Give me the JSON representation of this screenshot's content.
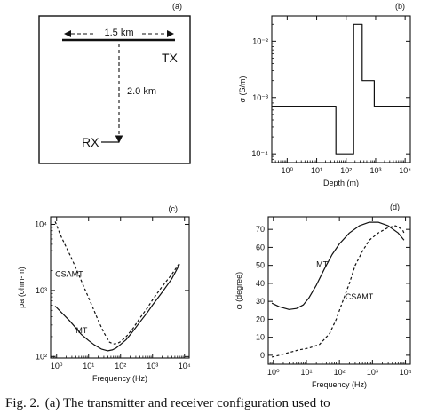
{
  "panel_a": {
    "tag": "(a)",
    "length_label": "1.5 km",
    "tx_label": "TX",
    "distance_label": "2.0 km",
    "rx_label": "RX"
  },
  "caption": {
    "fig_label": "Fig. 2.",
    "text": "(a) The transmitter and receiver configuration used to"
  },
  "chart_data": [
    {
      "id": "b",
      "tag": "(b)",
      "type": "line",
      "xscale": "log",
      "yscale": "log",
      "xlim": [
        0.3,
        15000
      ],
      "ylim": [
        7e-05,
        0.028
      ],
      "xlabel": "Depth (m)",
      "ylabel": "σ (S/m)",
      "xticks": [
        1,
        10,
        100,
        1000,
        10000
      ],
      "xtick_labels": [
        "10⁰",
        "10¹",
        "10²",
        "10³",
        "10⁴"
      ],
      "yticks": [
        0.0001,
        0.001,
        0.01
      ],
      "ytick_labels": [
        "10⁻⁴",
        "10⁻³",
        "10⁻²"
      ],
      "series": [
        {
          "style": "solid",
          "draw": "step",
          "x": [
            0.3,
            45,
            45,
            180,
            180,
            350,
            350,
            900,
            900,
            15000
          ],
          "y": [
            0.0007,
            0.0007,
            0.0001,
            0.0001,
            0.02,
            0.02,
            0.002,
            0.002,
            0.0007,
            0.0007
          ]
        }
      ]
    },
    {
      "id": "c",
      "tag": "(c)",
      "type": "line",
      "xscale": "log",
      "yscale": "log",
      "xlim": [
        0.65,
        14000
      ],
      "ylim": [
        95,
        13000
      ],
      "xlabel": "Frequency (Hz)",
      "ylabel": "ρa (ohm-m)",
      "xticks": [
        1,
        10,
        100,
        1000,
        10000
      ],
      "xtick_labels": [
        "10⁰",
        "10¹",
        "10²",
        "10³",
        "10⁴"
      ],
      "yticks": [
        100,
        1000,
        10000
      ],
      "ytick_labels": [
        "10²",
        "10³",
        "10⁴"
      ],
      "annotations": [
        {
          "text": "CSAMT",
          "x": 0.9,
          "y": 1600
        },
        {
          "text": "MT",
          "x": 4,
          "y": 225
        }
      ],
      "series": [
        {
          "name": "CSAMT",
          "style": "dashed",
          "x": [
            0.9,
            1.3,
            2,
            3,
            5,
            8,
            13,
            20,
            30,
            45,
            60,
            80,
            100,
            150,
            250,
            400,
            700,
            1000,
            2000,
            4000,
            7000
          ],
          "y": [
            11000,
            7000,
            4500,
            3000,
            1700,
            1000,
            580,
            350,
            230,
            165,
            155,
            158,
            168,
            200,
            270,
            380,
            550,
            720,
            1150,
            1750,
            2600
          ]
        },
        {
          "name": "MT",
          "style": "solid",
          "x": [
            0.9,
            1.5,
            2.5,
            4,
            6,
            10,
            15,
            25,
            40,
            55,
            70,
            100,
            150,
            250,
            400,
            700,
            1000,
            2000,
            4000,
            7000
          ],
          "y": [
            580,
            450,
            350,
            270,
            215,
            175,
            150,
            130,
            122,
            126,
            133,
            152,
            180,
            245,
            330,
            470,
            600,
            940,
            1500,
            2500
          ]
        }
      ]
    },
    {
      "id": "d",
      "tag": "(d)",
      "type": "line",
      "xscale": "log",
      "yscale": "linear",
      "xlim": [
        0.7,
        14000
      ],
      "ylim": [
        -5,
        77
      ],
      "xlabel": "Frequency (Hz)",
      "ylabel": "φ (degree)",
      "xticks": [
        1,
        10,
        100,
        1000,
        10000
      ],
      "xtick_labels": [
        "10⁰",
        "10¹",
        "10²",
        "10³",
        "10⁴"
      ],
      "yticks": [
        0,
        10,
        20,
        30,
        40,
        50,
        60,
        70
      ],
      "ytick_labels": [
        "0",
        "10",
        "20",
        "30",
        "40",
        "50",
        "60",
        "70"
      ],
      "annotations": [
        {
          "text": "MT",
          "x": 20,
          "y": 49
        },
        {
          "text": "CSAMT",
          "x": 150,
          "y": 31
        }
      ],
      "series": [
        {
          "name": "MT",
          "style": "solid",
          "x": [
            0.9,
            1.5,
            3,
            5,
            8,
            12,
            20,
            35,
            60,
            100,
            200,
            400,
            800,
            1500,
            3000,
            6000,
            9000
          ],
          "y": [
            29,
            27,
            25.5,
            26,
            28,
            32,
            39,
            48,
            56,
            62,
            68,
            72,
            74,
            74,
            72,
            68,
            64
          ]
        },
        {
          "name": "CSAMT",
          "style": "dashed",
          "x": [
            0.9,
            1.5,
            3,
            6,
            12,
            25,
            50,
            80,
            120,
            200,
            300,
            500,
            800,
            1500,
            3000,
            5000,
            8000,
            9000
          ],
          "y": [
            -1,
            0,
            1.5,
            3,
            4,
            6,
            12,
            20,
            29,
            40,
            50,
            58,
            64,
            68,
            71,
            72,
            70,
            68
          ]
        }
      ]
    }
  ]
}
